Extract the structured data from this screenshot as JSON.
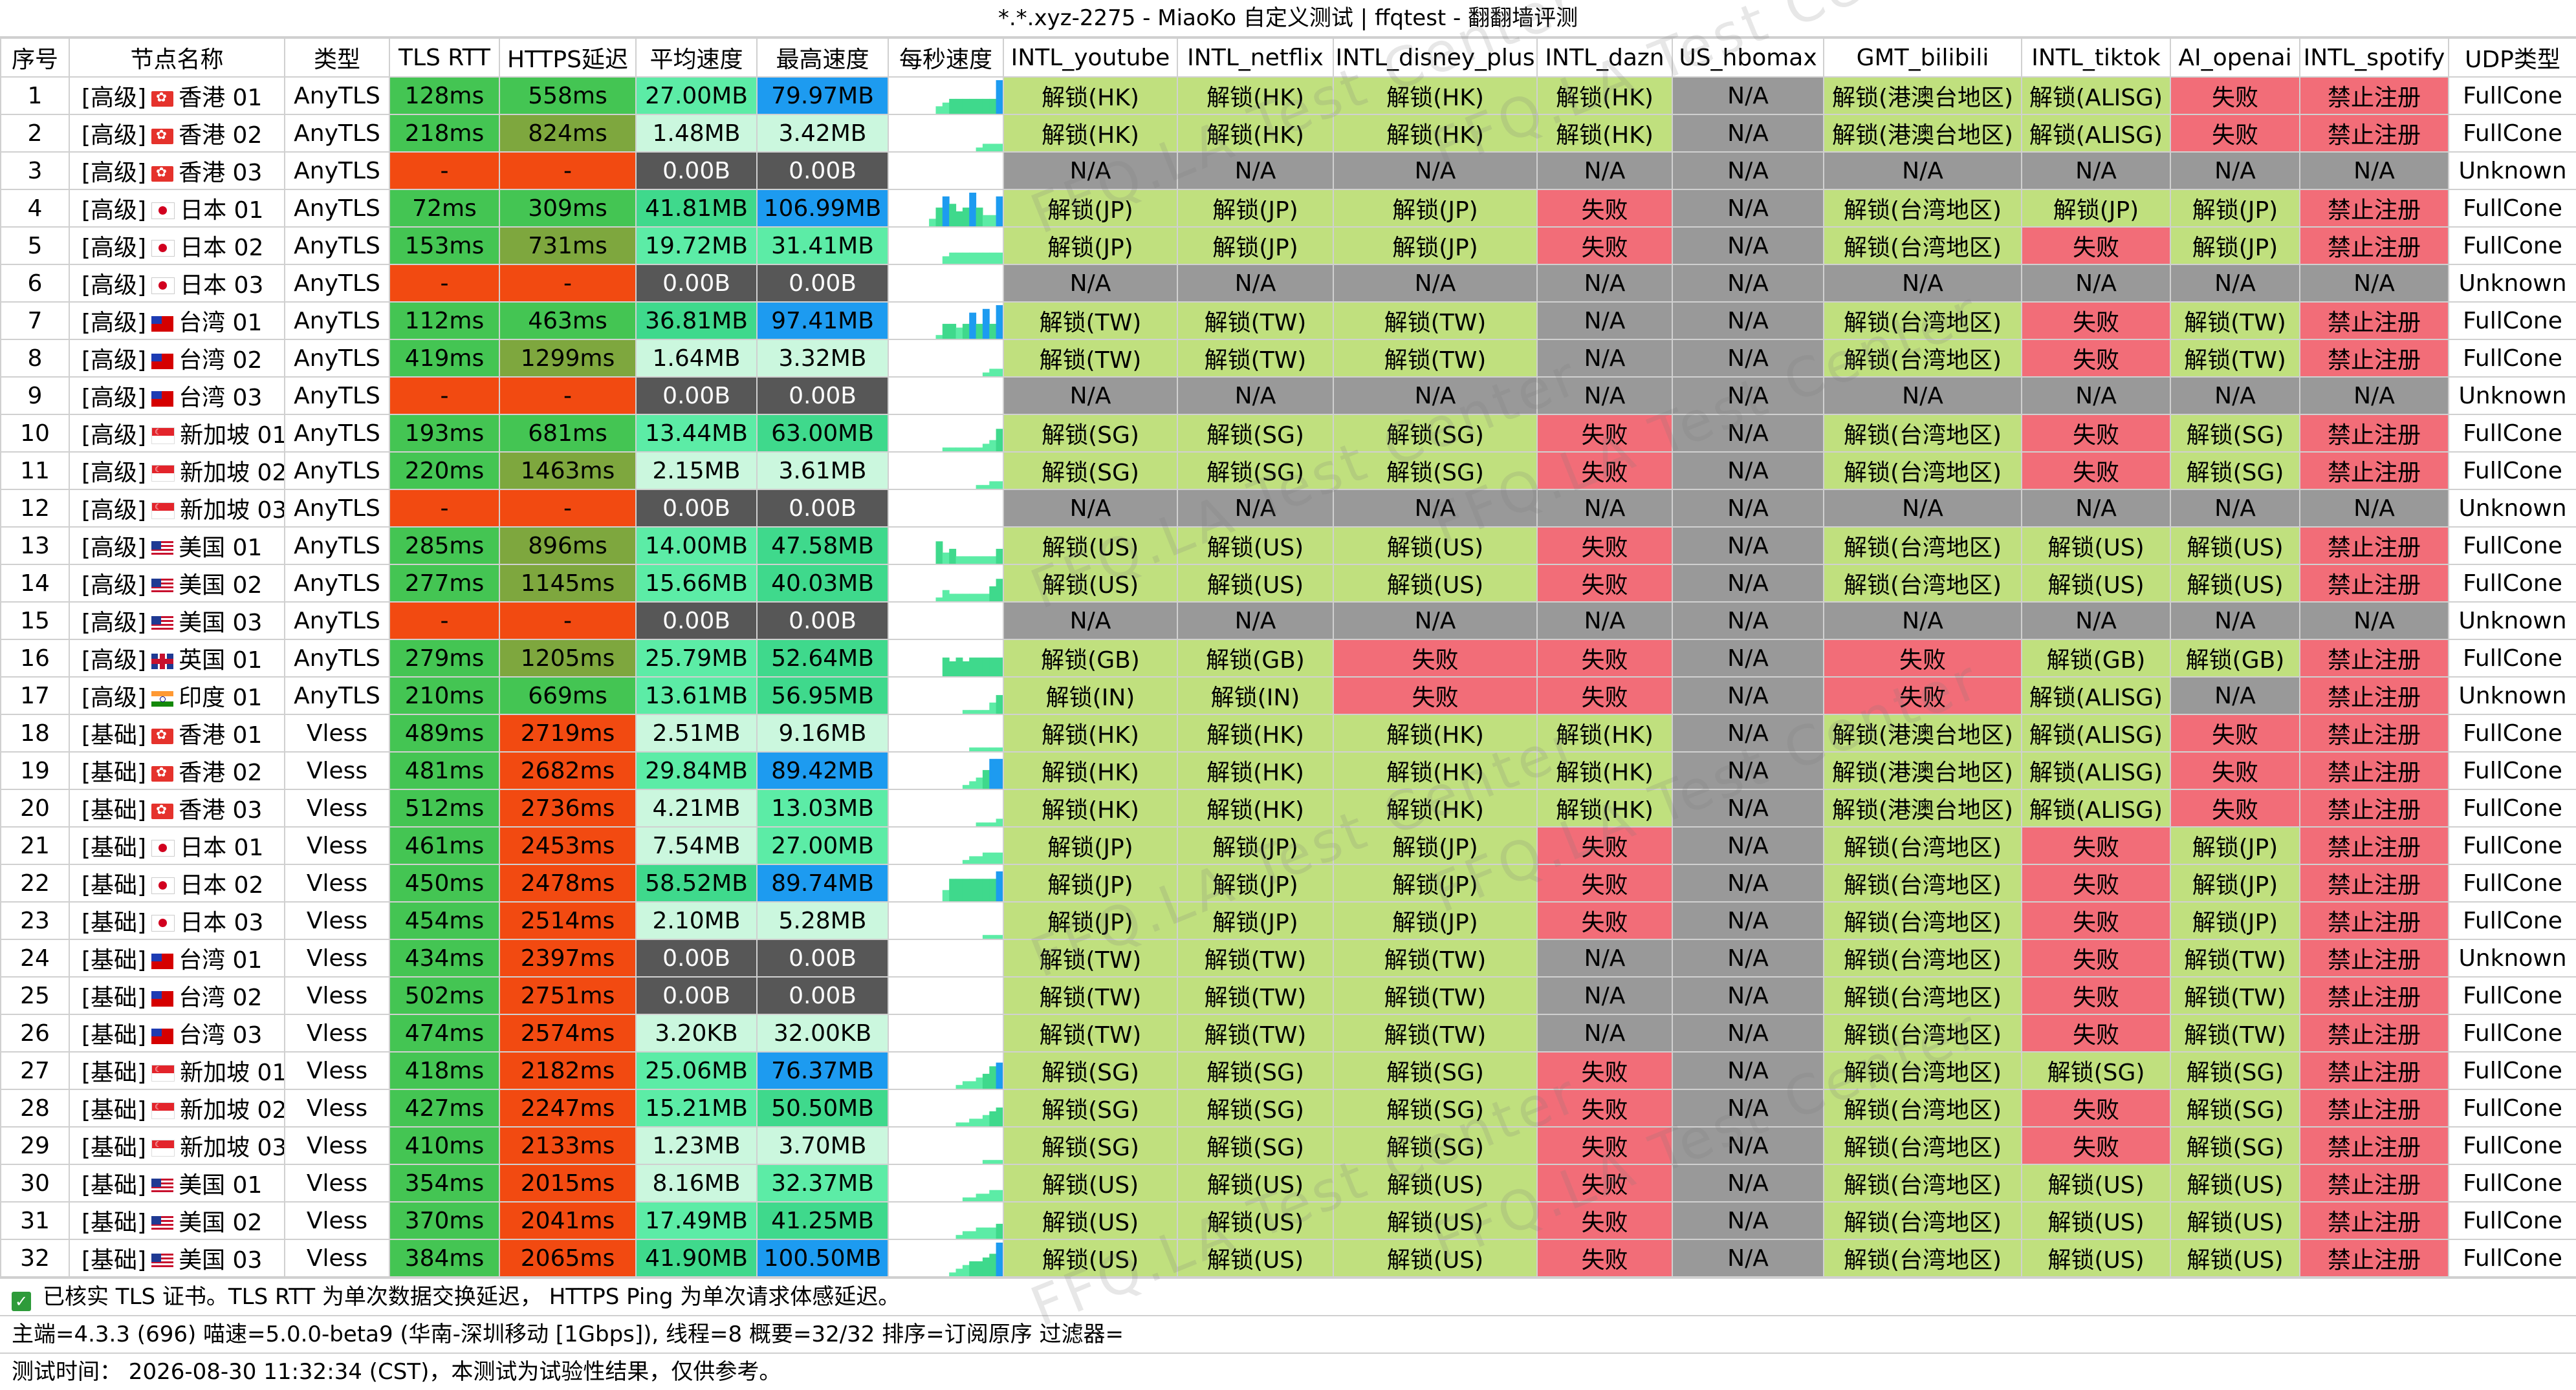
{
  "window": {
    "title": "*.*.xyz-2275 - MiaoKo 自定义测试 | ffqtest - 翻翻墙评测"
  },
  "watermark": "FFQ.LA Test Center",
  "colors": {
    "ok": "#c0e07e",
    "fail": "#f26d78",
    "na": "#999999",
    "na_text": "#000000",
    "rtt_good": "#44c553",
    "rtt_bad": "#f24a11",
    "https_good": "#44c553",
    "https_mid": "#7ea73e",
    "https_bad": "#f24a11",
    "speed_zero": "#575757",
    "speed_low": "#cbf7de",
    "speed_mid": "#5ceca6",
    "speed_high": "#3fd98c",
    "speed_top": "#1d9bf0"
  },
  "headers": [
    "序号",
    "节点名称",
    "类型",
    "TLS RTT",
    "HTTPS延迟",
    "平均速度",
    "最高速度",
    "每秒速度",
    "INTL_youtube",
    "INTL_netflix",
    "INTL_disney_plus",
    "INTL_dazn",
    "US_hbomax",
    "GMT_bilibili",
    "INTL_tiktok",
    "AI_openai",
    "INTL_spotify",
    "UDP类型"
  ],
  "rows": [
    {
      "idx": "1",
      "tier": "[高级]",
      "flag": "hk",
      "name": "香港 01",
      "type": "AnyTLS",
      "rtt": "128ms",
      "https": "558ms",
      "avg": "27.00MB",
      "max": "79.97MB",
      "spark": [
        0,
        0,
        0,
        0,
        0,
        0,
        0,
        2,
        3,
        4,
        4,
        4,
        4,
        4,
        4,
        4,
        9
      ],
      "yt": "解锁(HK)",
      "nf": "解锁(HK)",
      "dp": "解锁(HK)",
      "dazn": "解锁(HK)",
      "hbo": "N/A",
      "bili": "解锁(港澳台地区)",
      "tt": "解锁(ALISG)",
      "ai": "失败",
      "sp": "禁止注册",
      "udp": "FullCone"
    },
    {
      "idx": "2",
      "tier": "[高级]",
      "flag": "hk",
      "name": "香港 02",
      "type": "AnyTLS",
      "rtt": "218ms",
      "https": "824ms",
      "avg": "1.48MB",
      "max": "3.42MB",
      "spark": [
        0,
        0,
        0,
        0,
        0,
        0,
        0,
        0,
        0,
        0,
        0,
        0,
        0,
        1,
        2,
        2,
        2
      ],
      "yt": "解锁(HK)",
      "nf": "解锁(HK)",
      "dp": "解锁(HK)",
      "dazn": "解锁(HK)",
      "hbo": "N/A",
      "bili": "解锁(港澳台地区)",
      "tt": "解锁(ALISG)",
      "ai": "失败",
      "sp": "禁止注册",
      "udp": "FullCone"
    },
    {
      "idx": "3",
      "tier": "[高级]",
      "flag": "hk",
      "name": "香港 03",
      "type": "AnyTLS",
      "rtt": "-",
      "https": "-",
      "avg": "0.00B",
      "max": "0.00B",
      "spark": [],
      "yt": "N/A",
      "nf": "N/A",
      "dp": "N/A",
      "dazn": "N/A",
      "hbo": "N/A",
      "bili": "N/A",
      "tt": "N/A",
      "ai": "N/A",
      "sp": "N/A",
      "udp": "Unknown"
    },
    {
      "idx": "4",
      "tier": "[高级]",
      "flag": "jp",
      "name": "日本 01",
      "type": "AnyTLS",
      "rtt": "72ms",
      "https": "309ms",
      "avg": "41.81MB",
      "max": "106.99MB",
      "spark": [
        0,
        0,
        0,
        0,
        0,
        0,
        2,
        5,
        8,
        6,
        4,
        5,
        9,
        5,
        3,
        3,
        8
      ],
      "yt": "解锁(JP)",
      "nf": "解锁(JP)",
      "dp": "解锁(JP)",
      "dazn": "失败",
      "hbo": "N/A",
      "bili": "解锁(台湾地区)",
      "tt": "解锁(JP)",
      "ai": "解锁(JP)",
      "sp": "禁止注册",
      "udp": "FullCone"
    },
    {
      "idx": "5",
      "tier": "[高级]",
      "flag": "jp",
      "name": "日本 02",
      "type": "AnyTLS",
      "rtt": "153ms",
      "https": "731ms",
      "avg": "19.72MB",
      "max": "31.41MB",
      "spark": [
        0,
        0,
        0,
        0,
        0,
        0,
        0,
        0,
        2,
        3,
        3,
        3,
        3,
        3,
        3,
        3,
        3
      ],
      "yt": "解锁(JP)",
      "nf": "解锁(JP)",
      "dp": "解锁(JP)",
      "dazn": "失败",
      "hbo": "N/A",
      "bili": "解锁(台湾地区)",
      "tt": "失败",
      "ai": "解锁(JP)",
      "sp": "禁止注册",
      "udp": "FullCone"
    },
    {
      "idx": "6",
      "tier": "[高级]",
      "flag": "jp",
      "name": "日本 03",
      "type": "AnyTLS",
      "rtt": "-",
      "https": "-",
      "avg": "0.00B",
      "max": "0.00B",
      "spark": [],
      "yt": "N/A",
      "nf": "N/A",
      "dp": "N/A",
      "dazn": "N/A",
      "hbo": "N/A",
      "bili": "N/A",
      "tt": "N/A",
      "ai": "N/A",
      "sp": "N/A",
      "udp": "Unknown"
    },
    {
      "idx": "7",
      "tier": "[高级]",
      "flag": "tw",
      "name": "台湾 01",
      "type": "AnyTLS",
      "rtt": "112ms",
      "https": "463ms",
      "avg": "36.81MB",
      "max": "97.41MB",
      "spark": [
        0,
        0,
        0,
        0,
        0,
        0,
        0,
        1,
        4,
        4,
        3,
        4,
        7,
        4,
        8,
        4,
        9
      ],
      "yt": "解锁(TW)",
      "nf": "解锁(TW)",
      "dp": "解锁(TW)",
      "dazn": "N/A",
      "hbo": "N/A",
      "bili": "解锁(台湾地区)",
      "tt": "失败",
      "ai": "解锁(TW)",
      "sp": "禁止注册",
      "udp": "FullCone"
    },
    {
      "idx": "8",
      "tier": "[高级]",
      "flag": "tw",
      "name": "台湾 02",
      "type": "AnyTLS",
      "rtt": "419ms",
      "https": "1299ms",
      "avg": "1.64MB",
      "max": "3.32MB",
      "spark": [
        0,
        0,
        0,
        0,
        0,
        0,
        0,
        0,
        0,
        0,
        0,
        0,
        0,
        0,
        1,
        2,
        2
      ],
      "yt": "解锁(TW)",
      "nf": "解锁(TW)",
      "dp": "解锁(TW)",
      "dazn": "N/A",
      "hbo": "N/A",
      "bili": "解锁(台湾地区)",
      "tt": "失败",
      "ai": "解锁(TW)",
      "sp": "禁止注册",
      "udp": "FullCone"
    },
    {
      "idx": "9",
      "tier": "[高级]",
      "flag": "tw",
      "name": "台湾 03",
      "type": "AnyTLS",
      "rtt": "-",
      "https": "-",
      "avg": "0.00B",
      "max": "0.00B",
      "spark": [],
      "yt": "N/A",
      "nf": "N/A",
      "dp": "N/A",
      "dazn": "N/A",
      "hbo": "N/A",
      "bili": "N/A",
      "tt": "N/A",
      "ai": "N/A",
      "sp": "N/A",
      "udp": "Unknown"
    },
    {
      "idx": "10",
      "tier": "[高级]",
      "flag": "sg",
      "name": "新加坡 01",
      "type": "AnyTLS",
      "rtt": "193ms",
      "https": "681ms",
      "avg": "13.44MB",
      "max": "63.00MB",
      "spark": [
        0,
        0,
        0,
        0,
        0,
        0,
        0,
        0,
        1,
        1,
        1,
        1,
        1,
        1,
        2,
        3,
        6
      ],
      "yt": "解锁(SG)",
      "nf": "解锁(SG)",
      "dp": "解锁(SG)",
      "dazn": "失败",
      "hbo": "N/A",
      "bili": "解锁(台湾地区)",
      "tt": "失败",
      "ai": "解锁(SG)",
      "sp": "禁止注册",
      "udp": "FullCone"
    },
    {
      "idx": "11",
      "tier": "[高级]",
      "flag": "sg",
      "name": "新加坡 02",
      "type": "AnyTLS",
      "rtt": "220ms",
      "https": "1463ms",
      "avg": "2.15MB",
      "max": "3.61MB",
      "spark": [
        0,
        0,
        0,
        0,
        0,
        0,
        0,
        0,
        0,
        0,
        0,
        0,
        0,
        1,
        1,
        2,
        2
      ],
      "yt": "解锁(SG)",
      "nf": "解锁(SG)",
      "dp": "解锁(SG)",
      "dazn": "失败",
      "hbo": "N/A",
      "bili": "解锁(台湾地区)",
      "tt": "失败",
      "ai": "解锁(SG)",
      "sp": "禁止注册",
      "udp": "FullCone"
    },
    {
      "idx": "12",
      "tier": "[高级]",
      "flag": "sg",
      "name": "新加坡 03",
      "type": "AnyTLS",
      "rtt": "-",
      "https": "-",
      "avg": "0.00B",
      "max": "0.00B",
      "spark": [],
      "yt": "N/A",
      "nf": "N/A",
      "dp": "N/A",
      "dazn": "N/A",
      "hbo": "N/A",
      "bili": "N/A",
      "tt": "N/A",
      "ai": "N/A",
      "sp": "N/A",
      "udp": "Unknown"
    },
    {
      "idx": "13",
      "tier": "[高级]",
      "flag": "us",
      "name": "美国 01",
      "type": "AnyTLS",
      "rtt": "285ms",
      "https": "896ms",
      "avg": "14.00MB",
      "max": "47.58MB",
      "spark": [
        0,
        0,
        0,
        0,
        0,
        0,
        0,
        6,
        3,
        4,
        2,
        2,
        2,
        2,
        2,
        2,
        4
      ],
      "yt": "解锁(US)",
      "nf": "解锁(US)",
      "dp": "解锁(US)",
      "dazn": "失败",
      "hbo": "N/A",
      "bili": "解锁(台湾地区)",
      "tt": "解锁(US)",
      "ai": "解锁(US)",
      "sp": "禁止注册",
      "udp": "FullCone"
    },
    {
      "idx": "14",
      "tier": "[高级]",
      "flag": "us",
      "name": "美国 02",
      "type": "AnyTLS",
      "rtt": "277ms",
      "https": "1145ms",
      "avg": "15.66MB",
      "max": "40.03MB",
      "spark": [
        0,
        0,
        0,
        0,
        0,
        0,
        0,
        1,
        3,
        2,
        2,
        2,
        2,
        2,
        2,
        4,
        6
      ],
      "yt": "解锁(US)",
      "nf": "解锁(US)",
      "dp": "解锁(US)",
      "dazn": "失败",
      "hbo": "N/A",
      "bili": "解锁(台湾地区)",
      "tt": "解锁(US)",
      "ai": "解锁(US)",
      "sp": "禁止注册",
      "udp": "FullCone"
    },
    {
      "idx": "15",
      "tier": "[高级]",
      "flag": "us",
      "name": "美国 03",
      "type": "AnyTLS",
      "rtt": "-",
      "https": "-",
      "avg": "0.00B",
      "max": "0.00B",
      "spark": [],
      "yt": "N/A",
      "nf": "N/A",
      "dp": "N/A",
      "dazn": "N/A",
      "hbo": "N/A",
      "bili": "N/A",
      "tt": "N/A",
      "ai": "N/A",
      "sp": "N/A",
      "udp": "Unknown"
    },
    {
      "idx": "16",
      "tier": "[高级]",
      "flag": "gb",
      "name": "英国 01",
      "type": "AnyTLS",
      "rtt": "279ms",
      "https": "1205ms",
      "avg": "25.79MB",
      "max": "52.64MB",
      "spark": [
        0,
        0,
        0,
        0,
        0,
        0,
        0,
        0,
        5,
        4,
        5,
        4,
        5,
        5,
        5,
        5,
        5
      ],
      "yt": "解锁(GB)",
      "nf": "解锁(GB)",
      "dp": "失败",
      "dazn": "失败",
      "hbo": "N/A",
      "bili": "失败",
      "tt": "解锁(GB)",
      "ai": "解锁(GB)",
      "sp": "禁止注册",
      "udp": "FullCone"
    },
    {
      "idx": "17",
      "tier": "[高级]",
      "flag": "in",
      "name": "印度 01",
      "type": "AnyTLS",
      "rtt": "210ms",
      "https": "669ms",
      "avg": "13.61MB",
      "max": "56.95MB",
      "spark": [
        0,
        0,
        0,
        0,
        0,
        0,
        0,
        0,
        0,
        0,
        0,
        1,
        1,
        1,
        1,
        3,
        5
      ],
      "yt": "解锁(IN)",
      "nf": "解锁(IN)",
      "dp": "失败",
      "dazn": "失败",
      "hbo": "N/A",
      "bili": "失败",
      "tt": "解锁(ALISG)",
      "ai": "N/A",
      "sp": "禁止注册",
      "udp": "Unknown"
    },
    {
      "idx": "18",
      "tier": "[基础]",
      "flag": "hk",
      "name": "香港 01",
      "type": "Vless",
      "rtt": "489ms",
      "https": "2719ms",
      "avg": "2.51MB",
      "max": "9.16MB",
      "spark": [
        0,
        0,
        0,
        0,
        0,
        0,
        0,
        0,
        0,
        0,
        0,
        0,
        1,
        1,
        1,
        1,
        1
      ],
      "yt": "解锁(HK)",
      "nf": "解锁(HK)",
      "dp": "解锁(HK)",
      "dazn": "解锁(HK)",
      "hbo": "N/A",
      "bili": "解锁(港澳台地区)",
      "tt": "解锁(ALISG)",
      "ai": "失败",
      "sp": "禁止注册",
      "udp": "FullCone"
    },
    {
      "idx": "19",
      "tier": "[基础]",
      "flag": "hk",
      "name": "香港 02",
      "type": "Vless",
      "rtt": "481ms",
      "https": "2682ms",
      "avg": "29.84MB",
      "max": "89.42MB",
      "spark": [
        0,
        0,
        0,
        0,
        0,
        0,
        0,
        0,
        0,
        0,
        0,
        1,
        2,
        3,
        5,
        8,
        8
      ],
      "yt": "解锁(HK)",
      "nf": "解锁(HK)",
      "dp": "解锁(HK)",
      "dazn": "解锁(HK)",
      "hbo": "N/A",
      "bili": "解锁(港澳台地区)",
      "tt": "解锁(ALISG)",
      "ai": "失败",
      "sp": "禁止注册",
      "udp": "FullCone"
    },
    {
      "idx": "20",
      "tier": "[基础]",
      "flag": "hk",
      "name": "香港 03",
      "type": "Vless",
      "rtt": "512ms",
      "https": "2736ms",
      "avg": "4.21MB",
      "max": "13.03MB",
      "spark": [
        0,
        0,
        0,
        0,
        0,
        0,
        0,
        0,
        0,
        0,
        0,
        0,
        0,
        1,
        1,
        1,
        2
      ],
      "yt": "解锁(HK)",
      "nf": "解锁(HK)",
      "dp": "解锁(HK)",
      "dazn": "解锁(HK)",
      "hbo": "N/A",
      "bili": "解锁(港澳台地区)",
      "tt": "解锁(ALISG)",
      "ai": "失败",
      "sp": "禁止注册",
      "udp": "FullCone"
    },
    {
      "idx": "21",
      "tier": "[基础]",
      "flag": "jp",
      "name": "日本 01",
      "type": "Vless",
      "rtt": "461ms",
      "https": "2453ms",
      "avg": "7.54MB",
      "max": "27.00MB",
      "spark": [
        0,
        0,
        0,
        0,
        0,
        0,
        0,
        0,
        0,
        0,
        0,
        1,
        2,
        2,
        3,
        3,
        3
      ],
      "yt": "解锁(JP)",
      "nf": "解锁(JP)",
      "dp": "解锁(JP)",
      "dazn": "失败",
      "hbo": "N/A",
      "bili": "解锁(台湾地区)",
      "tt": "失败",
      "ai": "解锁(JP)",
      "sp": "禁止注册",
      "udp": "FullCone"
    },
    {
      "idx": "22",
      "tier": "[基础]",
      "flag": "jp",
      "name": "日本 02",
      "type": "Vless",
      "rtt": "450ms",
      "https": "2478ms",
      "avg": "58.52MB",
      "max": "89.74MB",
      "spark": [
        0,
        0,
        0,
        0,
        0,
        0,
        0,
        0,
        3,
        6,
        6,
        6,
        6,
        6,
        6,
        6,
        8
      ],
      "yt": "解锁(JP)",
      "nf": "解锁(JP)",
      "dp": "解锁(JP)",
      "dazn": "失败",
      "hbo": "N/A",
      "bili": "解锁(台湾地区)",
      "tt": "失败",
      "ai": "解锁(JP)",
      "sp": "禁止注册",
      "udp": "FullCone"
    },
    {
      "idx": "23",
      "tier": "[基础]",
      "flag": "jp",
      "name": "日本 03",
      "type": "Vless",
      "rtt": "454ms",
      "https": "2514ms",
      "avg": "2.10MB",
      "max": "5.28MB",
      "spark": [
        0,
        0,
        0,
        0,
        0,
        0,
        0,
        0,
        0,
        0,
        0,
        0,
        0,
        0,
        1,
        1,
        1
      ],
      "yt": "解锁(JP)",
      "nf": "解锁(JP)",
      "dp": "解锁(JP)",
      "dazn": "失败",
      "hbo": "N/A",
      "bili": "解锁(台湾地区)",
      "tt": "失败",
      "ai": "解锁(JP)",
      "sp": "禁止注册",
      "udp": "FullCone"
    },
    {
      "idx": "24",
      "tier": "[基础]",
      "flag": "tw",
      "name": "台湾 01",
      "type": "Vless",
      "rtt": "434ms",
      "https": "2397ms",
      "avg": "0.00B",
      "max": "0.00B",
      "spark": [],
      "yt": "解锁(TW)",
      "nf": "解锁(TW)",
      "dp": "解锁(TW)",
      "dazn": "N/A",
      "hbo": "N/A",
      "bili": "解锁(台湾地区)",
      "tt": "失败",
      "ai": "解锁(TW)",
      "sp": "禁止注册",
      "udp": "Unknown"
    },
    {
      "idx": "25",
      "tier": "[基础]",
      "flag": "tw",
      "name": "台湾 02",
      "type": "Vless",
      "rtt": "502ms",
      "https": "2751ms",
      "avg": "0.00B",
      "max": "0.00B",
      "spark": [],
      "yt": "解锁(TW)",
      "nf": "解锁(TW)",
      "dp": "解锁(TW)",
      "dazn": "N/A",
      "hbo": "N/A",
      "bili": "解锁(台湾地区)",
      "tt": "失败",
      "ai": "解锁(TW)",
      "sp": "禁止注册",
      "udp": "FullCone"
    },
    {
      "idx": "26",
      "tier": "[基础]",
      "flag": "tw",
      "name": "台湾 03",
      "type": "Vless",
      "rtt": "474ms",
      "https": "2574ms",
      "avg": "3.20KB",
      "max": "32.00KB",
      "spark": [],
      "yt": "解锁(TW)",
      "nf": "解锁(TW)",
      "dp": "解锁(TW)",
      "dazn": "N/A",
      "hbo": "N/A",
      "bili": "解锁(台湾地区)",
      "tt": "失败",
      "ai": "解锁(TW)",
      "sp": "禁止注册",
      "udp": "FullCone"
    },
    {
      "idx": "27",
      "tier": "[基础]",
      "flag": "sg",
      "name": "新加坡 01",
      "type": "Vless",
      "rtt": "418ms",
      "https": "2182ms",
      "avg": "25.06MB",
      "max": "76.37MB",
      "spark": [
        0,
        0,
        0,
        0,
        0,
        0,
        0,
        0,
        0,
        0,
        1,
        2,
        2,
        3,
        4,
        6,
        7
      ],
      "yt": "解锁(SG)",
      "nf": "解锁(SG)",
      "dp": "解锁(SG)",
      "dazn": "失败",
      "hbo": "N/A",
      "bili": "解锁(台湾地区)",
      "tt": "解锁(SG)",
      "ai": "解锁(SG)",
      "sp": "禁止注册",
      "udp": "FullCone"
    },
    {
      "idx": "28",
      "tier": "[基础]",
      "flag": "sg",
      "name": "新加坡 02",
      "type": "Vless",
      "rtt": "427ms",
      "https": "2247ms",
      "avg": "15.21MB",
      "max": "50.50MB",
      "spark": [
        0,
        0,
        0,
        0,
        0,
        0,
        0,
        0,
        0,
        0,
        1,
        1,
        2,
        2,
        3,
        4,
        5
      ],
      "yt": "解锁(SG)",
      "nf": "解锁(SG)",
      "dp": "解锁(SG)",
      "dazn": "失败",
      "hbo": "N/A",
      "bili": "解锁(台湾地区)",
      "tt": "失败",
      "ai": "解锁(SG)",
      "sp": "禁止注册",
      "udp": "FullCone"
    },
    {
      "idx": "29",
      "tier": "[基础]",
      "flag": "sg",
      "name": "新加坡 03",
      "type": "Vless",
      "rtt": "410ms",
      "https": "2133ms",
      "avg": "1.23MB",
      "max": "3.70MB",
      "spark": [
        0,
        0,
        0,
        0,
        0,
        0,
        0,
        0,
        0,
        0,
        0,
        0,
        0,
        0,
        1,
        1,
        1
      ],
      "yt": "解锁(SG)",
      "nf": "解锁(SG)",
      "dp": "解锁(SG)",
      "dazn": "失败",
      "hbo": "N/A",
      "bili": "解锁(台湾地区)",
      "tt": "失败",
      "ai": "解锁(SG)",
      "sp": "禁止注册",
      "udp": "FullCone"
    },
    {
      "idx": "30",
      "tier": "[基础]",
      "flag": "us",
      "name": "美国 01",
      "type": "Vless",
      "rtt": "354ms",
      "https": "2015ms",
      "avg": "8.16MB",
      "max": "32.37MB",
      "spark": [
        0,
        0,
        0,
        0,
        0,
        0,
        0,
        0,
        0,
        0,
        0,
        1,
        1,
        2,
        2,
        3,
        3
      ],
      "yt": "解锁(US)",
      "nf": "解锁(US)",
      "dp": "解锁(US)",
      "dazn": "失败",
      "hbo": "N/A",
      "bili": "解锁(台湾地区)",
      "tt": "解锁(US)",
      "ai": "解锁(US)",
      "sp": "禁止注册",
      "udp": "FullCone"
    },
    {
      "idx": "31",
      "tier": "[基础]",
      "flag": "us",
      "name": "美国 02",
      "type": "Vless",
      "rtt": "370ms",
      "https": "2041ms",
      "avg": "17.49MB",
      "max": "41.25MB",
      "spark": [
        0,
        0,
        0,
        0,
        0,
        0,
        0,
        0,
        0,
        0,
        1,
        2,
        2,
        3,
        3,
        3,
        4
      ],
      "yt": "解锁(US)",
      "nf": "解锁(US)",
      "dp": "解锁(US)",
      "dazn": "失败",
      "hbo": "N/A",
      "bili": "解锁(台湾地区)",
      "tt": "解锁(US)",
      "ai": "解锁(US)",
      "sp": "禁止注册",
      "udp": "FullCone"
    },
    {
      "idx": "32",
      "tier": "[基础]",
      "flag": "us",
      "name": "美国 03",
      "type": "Vless",
      "rtt": "384ms",
      "https": "2065ms",
      "avg": "41.90MB",
      "max": "100.50MB",
      "spark": [
        0,
        0,
        0,
        0,
        0,
        0,
        0,
        0,
        0,
        1,
        2,
        3,
        4,
        4,
        5,
        6,
        9
      ],
      "yt": "解锁(US)",
      "nf": "解锁(US)",
      "dp": "解锁(US)",
      "dazn": "失败",
      "hbo": "N/A",
      "bili": "解锁(台湾地区)",
      "tt": "解锁(US)",
      "ai": "解锁(US)",
      "sp": "禁止注册",
      "udp": "FullCone"
    }
  ],
  "footer": {
    "note": "已核实 TLS 证书。TLS RTT 为单次数据交换延迟， HTTPS Ping 为单次请求体感延迟。",
    "info": "主端=4.3.3 (696) 喵速=5.0.0-beta9 (华南-深圳移动 [1Gbps]), 线程=8 概要=32/32 排序=订阅原序 过滤器=",
    "time": "测试时间： 2026-08-30 11:32:34 (CST)，本测试为试验性结果，仅供参考。"
  }
}
